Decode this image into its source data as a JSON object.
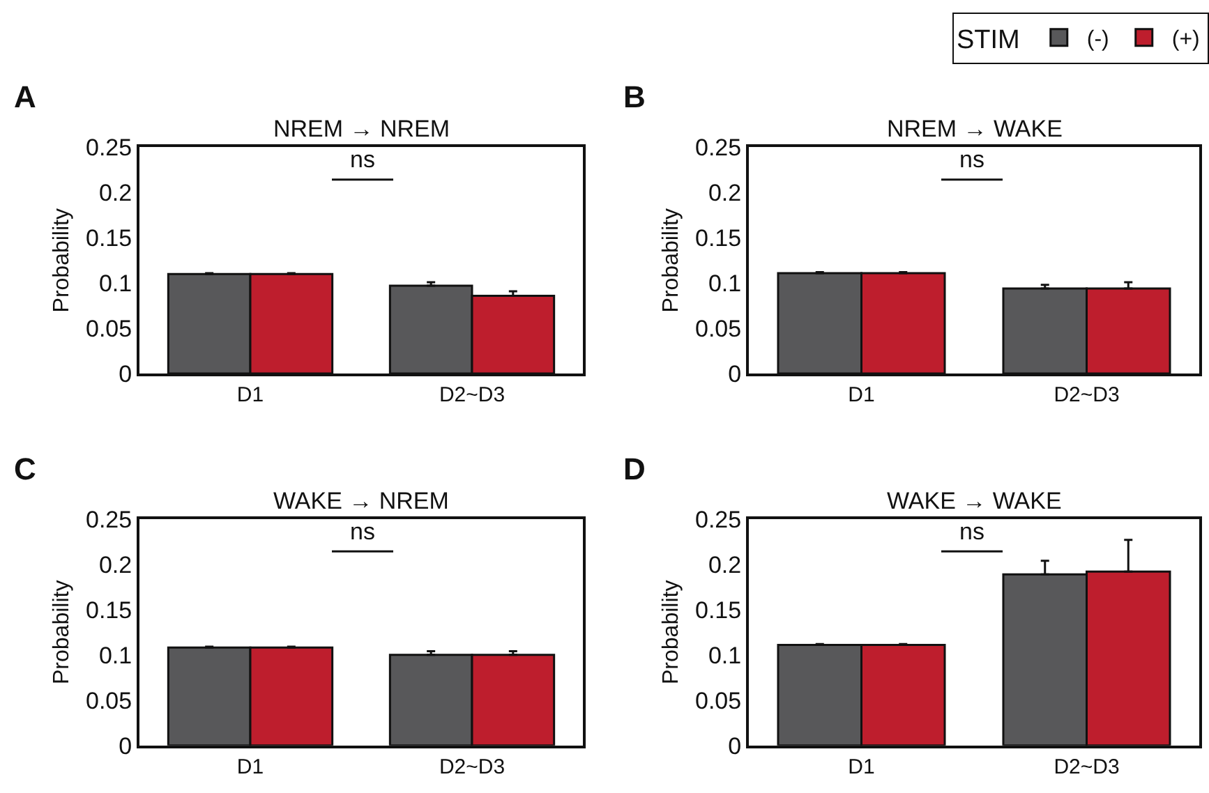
{
  "chart_data": [
    {
      "type": "bar",
      "title": "NREM → NREM",
      "ylabel": "Probability",
      "categories": [
        "D1",
        "D2~D3"
      ],
      "ylim": [
        0,
        0.25
      ],
      "yticks": [
        0,
        0.05,
        0.1,
        0.15,
        0.2,
        0.25
      ],
      "annotations": [
        "A",
        "ns"
      ],
      "legend": "top right",
      "legend_title": "STIM",
      "series": [
        {
          "name": "(-)",
          "color": "#58585a",
          "values": [
            0.11,
            0.097
          ],
          "errors": [
            [
              0.11,
              0.111
            ],
            [
              0.097,
              0.101
            ]
          ]
        },
        {
          "name": "(+)",
          "color": "#be1e2d",
          "values": [
            0.11,
            0.086
          ],
          "errors": [
            [
              0.11,
              0.111
            ],
            [
              0.086,
              0.091
            ]
          ]
        }
      ]
    },
    {
      "type": "bar",
      "title": "NREM → WAKE",
      "ylabel": "Probability",
      "categories": [
        "D1",
        "D2~D3"
      ],
      "ylim": [
        0,
        0.25
      ],
      "yticks": [
        0,
        0.05,
        0.1,
        0.15,
        0.2,
        0.25
      ],
      "annotations": [
        "B",
        "ns"
      ],
      "series": [
        {
          "color": "#58585a",
          "values": [
            0.111,
            0.094
          ],
          "errors": [
            [
              0.111,
              0.112
            ],
            [
              0.094,
              0.098
            ]
          ]
        },
        {
          "color": "#be1e2d",
          "values": [
            0.111,
            0.094
          ],
          "errors": [
            [
              0.111,
              0.112
            ],
            [
              0.094,
              0.101
            ]
          ]
        }
      ]
    },
    {
      "type": "bar",
      "title": "WAKE → NREM",
      "ylabel": "Probability",
      "categories": [
        "D1",
        "D2~D3"
      ],
      "ylim": [
        0,
        0.25
      ],
      "yticks": [
        0,
        0.05,
        0.1,
        0.15,
        0.2,
        0.25
      ],
      "annotations": [
        "C",
        "ns"
      ],
      "series": [
        {
          "color": "#58585a",
          "values": [
            0.108,
            0.1
          ],
          "errors": [
            [
              0.108,
              0.109
            ],
            [
              0.1,
              0.104
            ]
          ]
        },
        {
          "color": "#be1e2d",
          "values": [
            0.108,
            0.1
          ],
          "errors": [
            [
              0.108,
              0.109
            ],
            [
              0.1,
              0.104
            ]
          ]
        }
      ]
    },
    {
      "type": "bar",
      "title": "WAKE → WAKE",
      "ylabel": "Probability",
      "categories": [
        "D1",
        "D2~D3"
      ],
      "ylim": [
        0,
        0.25
      ],
      "yticks": [
        0,
        0.05,
        0.1,
        0.15,
        0.2,
        0.25
      ],
      "annotations": [
        "D",
        "ns"
      ],
      "series": [
        {
          "color": "#58585a",
          "values": [
            0.111,
            0.189
          ],
          "errors": [
            [
              0.111,
              0.112
            ],
            [
              0.189,
              0.204
            ]
          ]
        },
        {
          "color": "#be1e2d",
          "values": [
            0.111,
            0.192
          ],
          "errors": [
            [
              0.111,
              0.112
            ],
            [
              0.192,
              0.227
            ]
          ]
        }
      ]
    }
  ]
}
